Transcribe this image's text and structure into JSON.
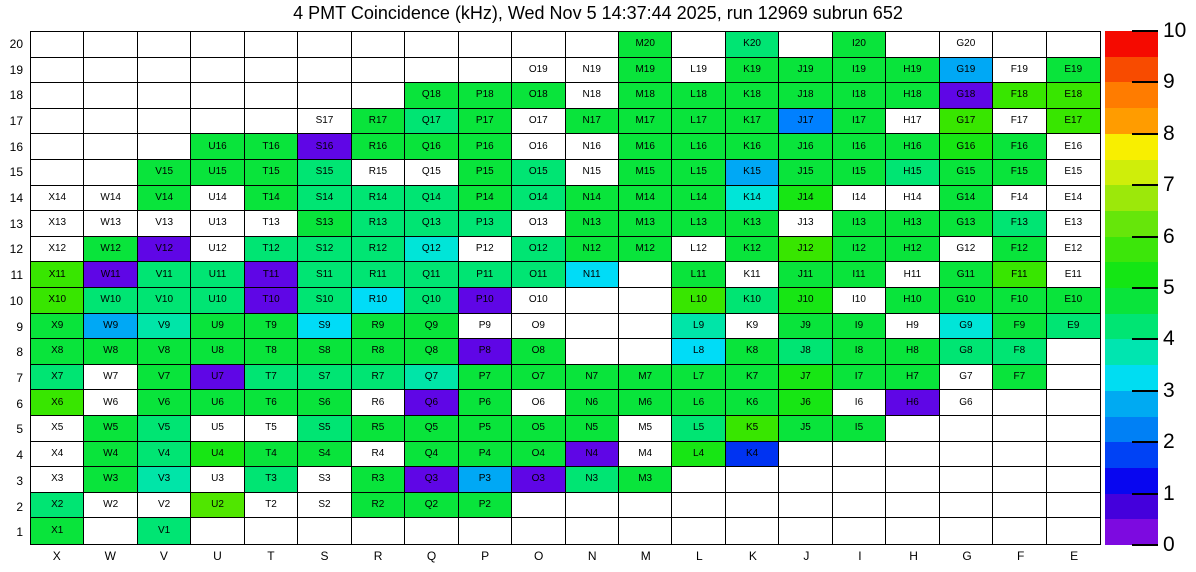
{
  "title": "4 PMT Coincidence (kHz), Wed Nov  5 14:37:44 2025, run 12969 subrun 652",
  "chart_data": {
    "type": "heatmap",
    "title": "4 PMT Coincidence (kHz), Wed Nov  5 14:37:44 2025, run 12969 subrun 652",
    "columns": [
      "X",
      "W",
      "V",
      "U",
      "T",
      "S",
      "R",
      "Q",
      "P",
      "O",
      "N",
      "M",
      "L",
      "K",
      "J",
      "I",
      "H",
      "G",
      "F",
      "E"
    ],
    "rows": [
      20,
      19,
      18,
      17,
      16,
      15,
      14,
      13,
      12,
      11,
      10,
      9,
      8,
      7,
      6,
      5,
      4,
      3,
      2,
      1
    ],
    "grid_on": true,
    "legend_position": "right-colorbar",
    "palette": {
      "W": "#ffffff",
      "G": "#09e43b",
      "G2": "#17e614",
      "SG": "#00e573",
      "YG": "#38e600",
      "YG2": "#50e600",
      "TQ": "#00e5a8",
      "CY": "#00e5d8",
      "BC": "#00dcf7",
      "SB": "#00a8f5",
      "DB": "#0080ff",
      "BL": "#0033f2",
      "PU": "#5f06e6"
    },
    "palette_value_estimate_khz": {
      "W": 0,
      "G": 4.8,
      "G2": 5.2,
      "SG": 4.3,
      "YG": 5.6,
      "YG2": 5.8,
      "TQ": 3.8,
      "CY": 3.3,
      "BC": 3.2,
      "SB": 2.8,
      "DB": 2.3,
      "BL": 1.7,
      "PU": 0.8
    },
    "cells": [
      [
        null,
        null,
        null,
        null,
        null,
        null,
        null,
        null,
        null,
        null,
        null,
        [
          "M20",
          "G"
        ],
        null,
        [
          "K20",
          "SG"
        ],
        null,
        [
          "I20",
          "G"
        ],
        null,
        [
          "G20",
          "W"
        ],
        null,
        null
      ],
      [
        null,
        null,
        null,
        null,
        null,
        null,
        null,
        null,
        null,
        [
          "O19",
          "W"
        ],
        [
          "N19",
          "W"
        ],
        [
          "M19",
          "G"
        ],
        [
          "L19",
          "W"
        ],
        [
          "K19",
          "G"
        ],
        [
          "J19",
          "G"
        ],
        [
          "I19",
          "G"
        ],
        [
          "H19",
          "G"
        ],
        [
          "G19",
          "SB"
        ],
        [
          "F19",
          "W"
        ],
        [
          "E19",
          "G"
        ]
      ],
      [
        null,
        null,
        null,
        null,
        null,
        null,
        null,
        [
          "Q18",
          "G"
        ],
        [
          "P18",
          "G"
        ],
        [
          "O18",
          "G"
        ],
        [
          "N18",
          "W"
        ],
        [
          "M18",
          "G"
        ],
        [
          "L18",
          "G"
        ],
        [
          "K18",
          "G"
        ],
        [
          "J18",
          "G"
        ],
        [
          "I18",
          "G"
        ],
        [
          "H18",
          "G"
        ],
        [
          "G18",
          "PU"
        ],
        [
          "F18",
          "YG"
        ],
        [
          "E18",
          "YG"
        ]
      ],
      [
        null,
        null,
        null,
        null,
        null,
        [
          "S17",
          "W"
        ],
        [
          "R17",
          "G"
        ],
        [
          "Q17",
          "SG"
        ],
        [
          "P17",
          "G"
        ],
        [
          "O17",
          "W"
        ],
        [
          "N17",
          "G"
        ],
        [
          "M17",
          "G"
        ],
        [
          "L17",
          "G"
        ],
        [
          "K17",
          "G"
        ],
        [
          "J17",
          "DB"
        ],
        [
          "I17",
          "G"
        ],
        [
          "H17",
          "W"
        ],
        [
          "G17",
          "YG"
        ],
        [
          "F17",
          "W"
        ],
        [
          "E17",
          "YG"
        ]
      ],
      [
        null,
        null,
        null,
        [
          "U16",
          "G"
        ],
        [
          "T16",
          "G"
        ],
        [
          "S16",
          "PU"
        ],
        [
          "R16",
          "G"
        ],
        [
          "Q16",
          "G"
        ],
        [
          "P16",
          "G"
        ],
        [
          "O16",
          "W"
        ],
        [
          "N16",
          "W"
        ],
        [
          "M16",
          "G"
        ],
        [
          "L16",
          "G"
        ],
        [
          "K16",
          "G"
        ],
        [
          "J16",
          "G"
        ],
        [
          "I16",
          "G"
        ],
        [
          "H16",
          "G"
        ],
        [
          "G16",
          "G2"
        ],
        [
          "F16",
          "G"
        ],
        [
          "E16",
          "W"
        ]
      ],
      [
        null,
        null,
        [
          "V15",
          "G"
        ],
        [
          "U15",
          "G"
        ],
        [
          "T15",
          "G"
        ],
        [
          "S15",
          "SG"
        ],
        [
          "R15",
          "W"
        ],
        [
          "Q15",
          "W"
        ],
        [
          "P15",
          "G"
        ],
        [
          "O15",
          "SG"
        ],
        [
          "N15",
          "W"
        ],
        [
          "M15",
          "G"
        ],
        [
          "L15",
          "G"
        ],
        [
          "K15",
          "SB"
        ],
        [
          "J15",
          "G"
        ],
        [
          "I15",
          "G"
        ],
        [
          "H15",
          "SG"
        ],
        [
          "G15",
          "G"
        ],
        [
          "F15",
          "G"
        ],
        [
          "E15",
          "W"
        ]
      ],
      [
        [
          "X14",
          "W"
        ],
        [
          "W14",
          "W"
        ],
        [
          "V14",
          "G"
        ],
        [
          "U14",
          "W"
        ],
        [
          "T14",
          "G"
        ],
        [
          "S14",
          "SG"
        ],
        [
          "R14",
          "SG"
        ],
        [
          "Q14",
          "SG"
        ],
        [
          "P14",
          "G"
        ],
        [
          "O14",
          "SG"
        ],
        [
          "N14",
          "G"
        ],
        [
          "M14",
          "G"
        ],
        [
          "L14",
          "G"
        ],
        [
          "K14",
          "CY"
        ],
        [
          "J14",
          "G2"
        ],
        [
          "I14",
          "W"
        ],
        [
          "H14",
          "W"
        ],
        [
          "G14",
          "G"
        ],
        [
          "F14",
          "W"
        ],
        [
          "E14",
          "W"
        ]
      ],
      [
        [
          "X13",
          "W"
        ],
        [
          "W13",
          "W"
        ],
        [
          "V13",
          "W"
        ],
        [
          "U13",
          "W"
        ],
        [
          "T13",
          "W"
        ],
        [
          "S13",
          "G"
        ],
        [
          "R13",
          "SG"
        ],
        [
          "Q13",
          "SG"
        ],
        [
          "P13",
          "SG"
        ],
        [
          "O13",
          "W"
        ],
        [
          "N13",
          "G"
        ],
        [
          "M13",
          "G"
        ],
        [
          "L13",
          "G"
        ],
        [
          "K13",
          "G"
        ],
        [
          "J13",
          "W"
        ],
        [
          "I13",
          "G"
        ],
        [
          "H13",
          "G"
        ],
        [
          "G13",
          "G"
        ],
        [
          "F13",
          "SG"
        ],
        [
          "E13",
          "W"
        ]
      ],
      [
        [
          "X12",
          "W"
        ],
        [
          "W12",
          "G"
        ],
        [
          "V12",
          "PU"
        ],
        [
          "U12",
          "W"
        ],
        [
          "T12",
          "SG"
        ],
        [
          "S12",
          "SG"
        ],
        [
          "R12",
          "SG"
        ],
        [
          "Q12",
          "CY"
        ],
        [
          "P12",
          "W"
        ],
        [
          "O12",
          "SG"
        ],
        [
          "N12",
          "G"
        ],
        [
          "M12",
          "G"
        ],
        [
          "L12",
          "W"
        ],
        [
          "K12",
          "G"
        ],
        [
          "J12",
          "YG"
        ],
        [
          "I12",
          "G"
        ],
        [
          "H12",
          "G"
        ],
        [
          "G12",
          "W"
        ],
        [
          "F12",
          "G"
        ],
        [
          "E12",
          "W"
        ]
      ],
      [
        [
          "X11",
          "YG"
        ],
        [
          "W11",
          "PU"
        ],
        [
          "V11",
          "SG"
        ],
        [
          "U11",
          "SG"
        ],
        [
          "T11",
          "PU"
        ],
        [
          "S11",
          "SG"
        ],
        [
          "R11",
          "SG"
        ],
        [
          "Q11",
          "SG"
        ],
        [
          "P11",
          "SG"
        ],
        [
          "O11",
          "SG"
        ],
        [
          "N11",
          "BC"
        ],
        null,
        [
          "L11",
          "G"
        ],
        [
          "K11",
          "W"
        ],
        [
          "J11",
          "G"
        ],
        [
          "I11",
          "G"
        ],
        [
          "H11",
          "W"
        ],
        [
          "G11",
          "G"
        ],
        [
          "F11",
          "YG"
        ],
        [
          "E11",
          "W"
        ]
      ],
      [
        [
          "X10",
          "YG"
        ],
        [
          "W10",
          "SG"
        ],
        [
          "V10",
          "SG"
        ],
        [
          "U10",
          "SG"
        ],
        [
          "T10",
          "PU"
        ],
        [
          "S10",
          "SG"
        ],
        [
          "R10",
          "BC"
        ],
        [
          "Q10",
          "SG"
        ],
        [
          "P10",
          "PU"
        ],
        [
          "O10",
          "W"
        ],
        null,
        null,
        [
          "L10",
          "YG"
        ],
        [
          "K10",
          "SG"
        ],
        [
          "J10",
          "G2"
        ],
        [
          "I10",
          "W"
        ],
        [
          "H10",
          "G"
        ],
        [
          "G10",
          "G"
        ],
        [
          "F10",
          "G"
        ],
        [
          "E10",
          "G"
        ]
      ],
      [
        [
          "X9",
          "G"
        ],
        [
          "W9",
          "SB"
        ],
        [
          "V9",
          "TQ"
        ],
        [
          "U9",
          "G"
        ],
        [
          "T9",
          "G"
        ],
        [
          "S9",
          "BC"
        ],
        [
          "R9",
          "G"
        ],
        [
          "Q9",
          "G"
        ],
        [
          "P9",
          "W"
        ],
        [
          "O9",
          "W"
        ],
        null,
        null,
        [
          "L9",
          "TQ"
        ],
        [
          "K9",
          "W"
        ],
        [
          "J9",
          "G"
        ],
        [
          "I9",
          "G"
        ],
        [
          "H9",
          "W"
        ],
        [
          "G9",
          "CY"
        ],
        [
          "F9",
          "G"
        ],
        [
          "E9",
          "SG"
        ]
      ],
      [
        [
          "X8",
          "G"
        ],
        [
          "W8",
          "G"
        ],
        [
          "V8",
          "G"
        ],
        [
          "U8",
          "G"
        ],
        [
          "T8",
          "G"
        ],
        [
          "S8",
          "G"
        ],
        [
          "R8",
          "G"
        ],
        [
          "Q8",
          "G"
        ],
        [
          "P8",
          "PU"
        ],
        [
          "O8",
          "G"
        ],
        null,
        null,
        [
          "L8",
          "BC"
        ],
        [
          "K8",
          "G"
        ],
        [
          "J8",
          "SG"
        ],
        [
          "I8",
          "G"
        ],
        [
          "H8",
          "G"
        ],
        [
          "G8",
          "SG"
        ],
        [
          "F8",
          "SG"
        ],
        null
      ],
      [
        [
          "X7",
          "SG"
        ],
        [
          "W7",
          "W"
        ],
        [
          "V7",
          "G"
        ],
        [
          "U7",
          "PU"
        ],
        [
          "T7",
          "SG"
        ],
        [
          "S7",
          "SG"
        ],
        [
          "R7",
          "SG"
        ],
        [
          "Q7",
          "TQ"
        ],
        [
          "P7",
          "G"
        ],
        [
          "O7",
          "G"
        ],
        [
          "N7",
          "G"
        ],
        [
          "M7",
          "G"
        ],
        [
          "L7",
          "G"
        ],
        [
          "K7",
          "G"
        ],
        [
          "J7",
          "G2"
        ],
        [
          "I7",
          "G"
        ],
        [
          "H7",
          "G"
        ],
        [
          "G7",
          "W"
        ],
        [
          "F7",
          "G"
        ],
        null
      ],
      [
        [
          "X6",
          "YG"
        ],
        [
          "W6",
          "W"
        ],
        [
          "V6",
          "G"
        ],
        [
          "U6",
          "G"
        ],
        [
          "T6",
          "G"
        ],
        [
          "S6",
          "G"
        ],
        [
          "R6",
          "W"
        ],
        [
          "Q6",
          "PU"
        ],
        [
          "P6",
          "G"
        ],
        [
          "O6",
          "W"
        ],
        [
          "N6",
          "G"
        ],
        [
          "M6",
          "G"
        ],
        [
          "L6",
          "G"
        ],
        [
          "K6",
          "G"
        ],
        [
          "J6",
          "G2"
        ],
        [
          "I6",
          "W"
        ],
        [
          "H6",
          "PU"
        ],
        [
          "G6",
          "W"
        ],
        null,
        null
      ],
      [
        [
          "X5",
          "W"
        ],
        [
          "W5",
          "G"
        ],
        [
          "V5",
          "SG"
        ],
        [
          "U5",
          "W"
        ],
        [
          "T5",
          "W"
        ],
        [
          "S5",
          "SG"
        ],
        [
          "R5",
          "G"
        ],
        [
          "Q5",
          "G"
        ],
        [
          "P5",
          "G"
        ],
        [
          "O5",
          "G"
        ],
        [
          "N5",
          "G"
        ],
        [
          "M5",
          "W"
        ],
        [
          "L5",
          "SG"
        ],
        [
          "K5",
          "YG"
        ],
        [
          "J5",
          "G"
        ],
        [
          "I5",
          "G"
        ],
        null,
        null,
        null,
        null
      ],
      [
        [
          "X4",
          "W"
        ],
        [
          "W4",
          "G"
        ],
        [
          "V4",
          "SG"
        ],
        [
          "U4",
          "G2"
        ],
        [
          "T4",
          "G"
        ],
        [
          "S4",
          "G"
        ],
        [
          "R4",
          "W"
        ],
        [
          "Q4",
          "G"
        ],
        [
          "P4",
          "G"
        ],
        [
          "O4",
          "G"
        ],
        [
          "N4",
          "PU"
        ],
        [
          "M4",
          "W"
        ],
        [
          "L4",
          "G2"
        ],
        [
          "K4",
          "BL"
        ],
        null,
        null,
        null,
        null,
        null,
        null
      ],
      [
        [
          "X3",
          "W"
        ],
        [
          "W3",
          "G"
        ],
        [
          "V3",
          "TQ"
        ],
        [
          "U3",
          "W"
        ],
        [
          "T3",
          "SG"
        ],
        [
          "S3",
          "W"
        ],
        [
          "R3",
          "G"
        ],
        [
          "Q3",
          "PU"
        ],
        [
          "P3",
          "SB"
        ],
        [
          "O3",
          "PU"
        ],
        [
          "N3",
          "SG"
        ],
        [
          "M3",
          "G"
        ],
        null,
        null,
        null,
        null,
        null,
        null,
        null,
        null
      ],
      [
        [
          "X2",
          "SG"
        ],
        [
          "W2",
          "W"
        ],
        [
          "V2",
          "W"
        ],
        [
          "U2",
          "YG2"
        ],
        [
          "T2",
          "W"
        ],
        [
          "S2",
          "W"
        ],
        [
          "R2",
          "G"
        ],
        [
          "Q2",
          "G"
        ],
        [
          "P2",
          "G"
        ],
        null,
        null,
        null,
        null,
        null,
        null,
        null,
        null,
        null,
        null,
        null
      ],
      [
        [
          "X1",
          "G"
        ],
        null,
        [
          "V1",
          "SG"
        ],
        null,
        null,
        null,
        null,
        null,
        null,
        null,
        null,
        null,
        null,
        null,
        null,
        null,
        null,
        null,
        null,
        null
      ]
    ],
    "colorbar": {
      "min": 0,
      "max": 10,
      "tick_labels": [
        "0",
        "1",
        "2",
        "3",
        "4",
        "5",
        "6",
        "7",
        "8",
        "9",
        "10"
      ],
      "band_colors_bottom_to_top": [
        "#7d0ae0",
        "#4400dc",
        "#0806f0",
        "#0042f5",
        "#0080f5",
        "#00aaf2",
        "#00ddf2",
        "#00e5b0",
        "#00e573",
        "#09e43b",
        "#14e614",
        "#3ce60a",
        "#66e60a",
        "#9ce80a",
        "#cfee0a",
        "#f8ef00",
        "#ff9c00",
        "#ff7c00",
        "#f84b00",
        "#f50a00"
      ]
    }
  }
}
